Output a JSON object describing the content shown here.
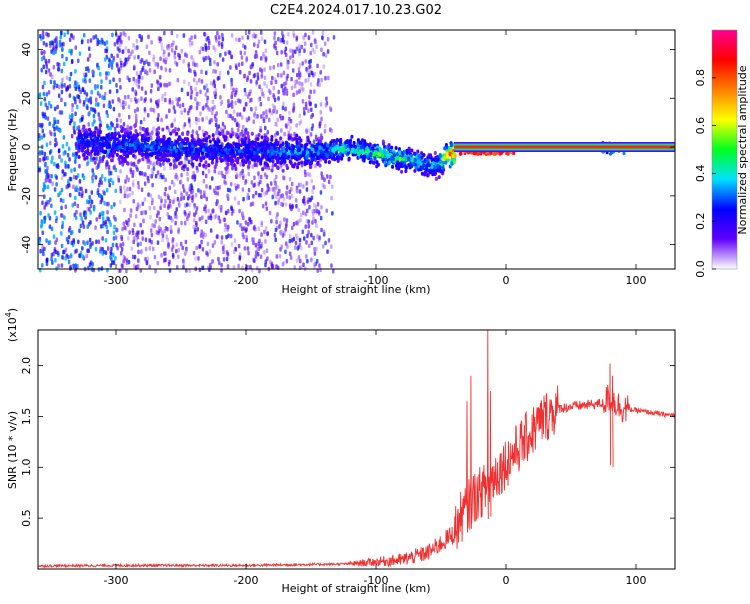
{
  "title": "C2E4.2024.017.10.23.G02",
  "chart_data": [
    {
      "type": "heatmap",
      "xlabel": "Height of straight line (km)",
      "ylabel": "Frequency (Hz)",
      "xlim": [
        -360,
        130
      ],
      "ylim": [
        -50,
        48
      ],
      "x_ticks": [
        -300,
        -200,
        -100,
        0,
        100
      ],
      "y_ticks": [
        40,
        20,
        0,
        -20,
        -40
      ],
      "colorbar": {
        "label": "Normalized spectral amplitude",
        "range": [
          0,
          1
        ],
        "ticks": [
          0.0,
          0.2,
          0.4,
          0.6,
          0.8
        ],
        "tick_labels": [
          "0.0",
          "0.2",
          "0.4",
          "0.6",
          "0.8"
        ],
        "colors": [
          "#ffffff",
          "#6000ff",
          "#0000ff",
          "#00e0ff",
          "#00ff20",
          "#ffff00",
          "#ff8000",
          "#ff0000",
          "#ff0090"
        ]
      },
      "ridge": {
        "x": [
          -330,
          -300,
          -250,
          -200,
          -150,
          -120,
          -90,
          -70,
          -55,
          -45,
          -35,
          -20,
          0,
          50,
          100,
          130
        ],
        "frequency": [
          3,
          2,
          0,
          -1,
          -1,
          0,
          -3,
          -5,
          -7,
          -2,
          -2,
          0,
          0,
          0,
          0,
          0
        ],
        "amplitude": [
          0.28,
          0.3,
          0.3,
          0.28,
          0.35,
          0.45,
          0.5,
          0.45,
          0.35,
          0.8,
          0.85,
          0.85,
          0.9,
          0.95,
          0.95,
          0.95
        ]
      },
      "carrier_line": {
        "x": [
          -40,
          130
        ],
        "frequency": 0,
        "amplitude": 0.95
      },
      "noise_edge_x": -150
    },
    {
      "type": "line",
      "xlabel": "Height of straight line (km)",
      "ylabel": "SNR (10 * v/v)",
      "y_multiplier": "(x10",
      "y_multiplier_exp": "4",
      "y_multiplier_close": ")",
      "xlim": [
        -360,
        130
      ],
      "ylim": [
        0,
        23500
      ],
      "x_ticks": [
        -300,
        -200,
        -100,
        0,
        100
      ],
      "x_tick_labels": [
        "-300",
        "-200",
        "-100",
        "0",
        "100"
      ],
      "y_ticks": [
        5000,
        10000,
        15000,
        20000
      ],
      "y_tick_labels": [
        "0.5",
        "1.0",
        "1.5",
        "2.0"
      ],
      "series_color": "#f03030",
      "series": [
        {
          "x": [
            -360,
            -300,
            -200,
            -120,
            -100,
            -80,
            -60,
            -50,
            -40,
            -35,
            -30,
            -25,
            -20,
            -15,
            -10,
            0,
            10,
            20,
            30,
            40,
            60,
            75,
            80,
            85,
            90,
            100,
            110,
            120,
            130
          ],
          "values": [
            300,
            350,
            350,
            500,
            700,
            900,
            1600,
            2500,
            3500,
            5000,
            6000,
            7000,
            7500,
            8000,
            9000,
            10500,
            12000,
            13500,
            15000,
            15800,
            16100,
            16300,
            17000,
            16200,
            15800,
            15600,
            15400,
            15200,
            15100
          ]
        }
      ],
      "spikes": [
        {
          "x": -30,
          "value": 16500
        },
        {
          "x": -27,
          "value": 19000
        },
        {
          "x": -14,
          "value": 23500
        },
        {
          "x": -12,
          "value": 17500
        },
        {
          "x": 80,
          "value": 20200
        },
        {
          "x": 82,
          "value": 19000
        }
      ]
    }
  ]
}
